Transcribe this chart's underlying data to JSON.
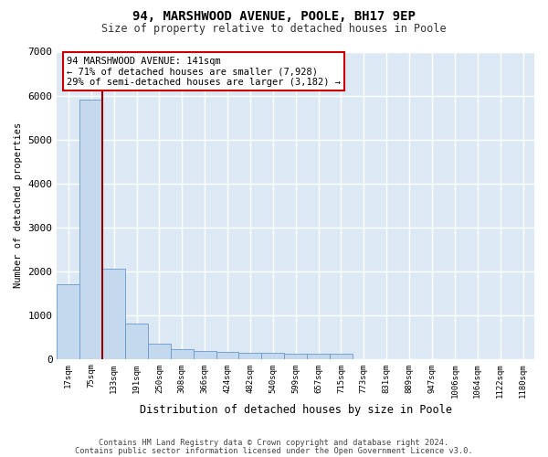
{
  "title1": "94, MARSHWOOD AVENUE, POOLE, BH17 9EP",
  "title2": "Size of property relative to detached houses in Poole",
  "xlabel": "Distribution of detached houses by size in Poole",
  "ylabel": "Number of detached properties",
  "annotation_line1": "94 MARSHWOOD AVENUE: 141sqm",
  "annotation_line2": "← 71% of detached houses are smaller (7,928)",
  "annotation_line3": "29% of semi-detached houses are larger (3,182) →",
  "footer1": "Contains HM Land Registry data © Crown copyright and database right 2024.",
  "footer2": "Contains public sector information licensed under the Open Government Licence v3.0.",
  "bar_color": "#c5d9ee",
  "bar_edge_color": "#6699cc",
  "background_color": "#dce9f5",
  "grid_color": "#ffffff",
  "annotation_box_edge_color": "#cc0000",
  "property_line_color": "#990000",
  "fig_background": "#ffffff",
  "categories": [
    "17sqm",
    "75sqm",
    "133sqm",
    "191sqm",
    "250sqm",
    "308sqm",
    "366sqm",
    "424sqm",
    "482sqm",
    "540sqm",
    "599sqm",
    "657sqm",
    "715sqm",
    "773sqm",
    "831sqm",
    "889sqm",
    "947sqm",
    "1006sqm",
    "1064sqm",
    "1122sqm",
    "1180sqm"
  ],
  "values": [
    1700,
    5900,
    2050,
    800,
    340,
    230,
    170,
    155,
    140,
    130,
    120,
    115,
    110,
    0,
    0,
    0,
    0,
    0,
    0,
    0,
    0
  ],
  "property_line_x": 1.5,
  "ylim": [
    0,
    7000
  ],
  "yticks": [
    0,
    1000,
    2000,
    3000,
    4000,
    5000,
    6000,
    7000
  ]
}
